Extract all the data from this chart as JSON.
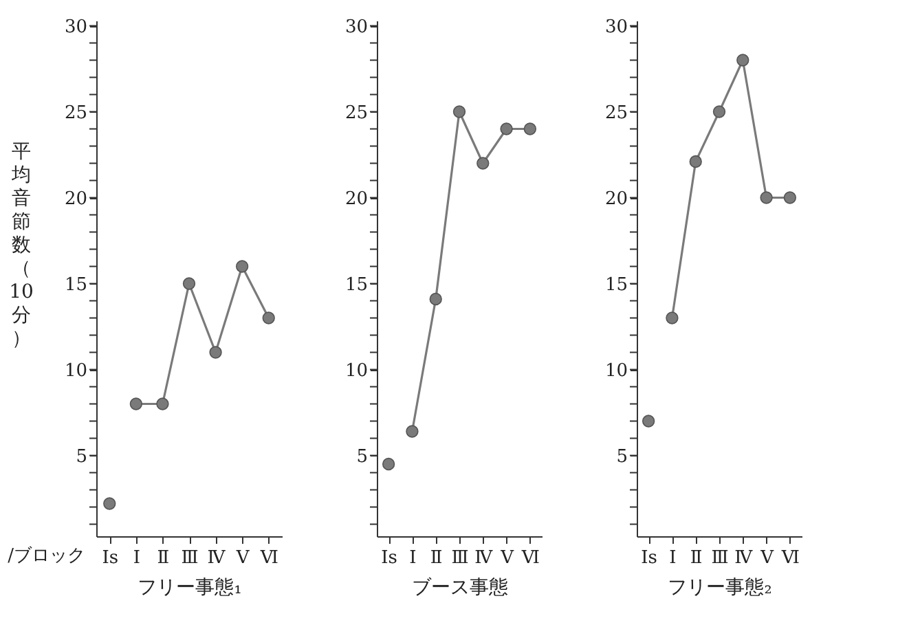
{
  "chart_data": [
    {
      "type": "line",
      "xlabel": "フリー事態₁",
      "ylabel": "平均音節数（10分）",
      "annotations": [
        "/ブロック"
      ],
      "categories": [
        "Ⅰs",
        "Ⅰ",
        "Ⅱ",
        "Ⅲ",
        "Ⅳ",
        "Ⅴ",
        "Ⅵ"
      ],
      "ylim": [
        0.3,
        30.3
      ],
      "yticks": [
        {
          "value": 1,
          "label": null
        },
        {
          "value": 2,
          "label": null
        },
        {
          "value": 3,
          "label": null
        },
        {
          "value": 4,
          "label": null
        },
        5,
        {
          "value": 6,
          "label": null
        },
        {
          "value": 7,
          "label": null
        },
        {
          "value": 8,
          "label": null
        },
        {
          "value": 9,
          "label": null
        },
        10,
        {
          "value": 11,
          "label": null
        },
        {
          "value": 12,
          "label": null
        },
        {
          "value": 13,
          "label": null
        },
        {
          "value": 14,
          "label": null
        },
        15,
        {
          "value": 16,
          "label": null
        },
        {
          "value": 17,
          "label": null
        },
        {
          "value": 18,
          "label": null
        },
        {
          "value": 19,
          "label": null
        },
        20,
        {
          "value": 21,
          "label": null
        },
        {
          "value": 22,
          "label": null
        },
        {
          "value": 23,
          "label": null
        },
        {
          "value": 24,
          "label": null
        },
        25,
        {
          "value": 26,
          "label": null
        },
        {
          "value": 27,
          "label": null
        },
        {
          "value": 28,
          "label": null
        },
        {
          "value": 29,
          "label": null
        },
        30
      ],
      "grid": false,
      "marker": "circle",
      "line_style": "solid",
      "series": [
        {
          "type": "scatter",
          "color": "#7a7a7a",
          "x": [
            "Ⅰs"
          ],
          "values": [
            2.2
          ]
        },
        {
          "type": "line",
          "color": "#7a7a7a",
          "values": [
            null,
            8,
            8,
            15,
            11,
            16,
            13
          ]
        }
      ]
    },
    {
      "type": "line",
      "xlabel": "ブース事態",
      "categories": [
        "Ⅰs",
        "Ⅰ",
        "Ⅱ",
        "Ⅲ",
        "Ⅳ",
        "Ⅴ",
        "Ⅵ"
      ],
      "ylim": [
        0.3,
        30.3
      ],
      "yticks": [
        {
          "value": 1,
          "label": null
        },
        {
          "value": 2,
          "label": null
        },
        {
          "value": 3,
          "label": null
        },
        {
          "value": 4,
          "label": null
        },
        5,
        {
          "value": 6,
          "label": null
        },
        {
          "value": 7,
          "label": null
        },
        {
          "value": 8,
          "label": null
        },
        {
          "value": 9,
          "label": null
        },
        10,
        {
          "value": 11,
          "label": null
        },
        {
          "value": 12,
          "label": null
        },
        {
          "value": 13,
          "label": null
        },
        {
          "value": 14,
          "label": null
        },
        15,
        {
          "value": 16,
          "label": null
        },
        {
          "value": 17,
          "label": null
        },
        {
          "value": 18,
          "label": null
        },
        {
          "value": 19,
          "label": null
        },
        20,
        {
          "value": 21,
          "label": null
        },
        {
          "value": 22,
          "label": null
        },
        {
          "value": 23,
          "label": null
        },
        {
          "value": 24,
          "label": null
        },
        25,
        {
          "value": 26,
          "label": null
        },
        {
          "value": 27,
          "label": null
        },
        {
          "value": 28,
          "label": null
        },
        {
          "value": 29,
          "label": null
        },
        30
      ],
      "grid": false,
      "marker": "circle",
      "line_style": "solid",
      "series": [
        {
          "type": "scatter",
          "color": "#7a7a7a",
          "x": [
            "Ⅰs"
          ],
          "values": [
            4.5
          ]
        },
        {
          "type": "line",
          "color": "#7a7a7a",
          "values": [
            null,
            6.4,
            14.1,
            25,
            22,
            24,
            24
          ]
        }
      ]
    },
    {
      "type": "line",
      "xlabel": "フリー事態₂",
      "categories": [
        "Ⅰs",
        "Ⅰ",
        "Ⅱ",
        "Ⅲ",
        "Ⅳ",
        "Ⅴ",
        "Ⅵ"
      ],
      "ylim": [
        0.3,
        30.3
      ],
      "yticks": [
        {
          "value": 1,
          "label": null
        },
        {
          "value": 2,
          "label": null
        },
        {
          "value": 3,
          "label": null
        },
        {
          "value": 4,
          "label": null
        },
        5,
        {
          "value": 6,
          "label": null
        },
        {
          "value": 7,
          "label": null
        },
        {
          "value": 8,
          "label": null
        },
        {
          "value": 9,
          "label": null
        },
        10,
        {
          "value": 11,
          "label": null
        },
        {
          "value": 12,
          "label": null
        },
        {
          "value": 13,
          "label": null
        },
        {
          "value": 14,
          "label": null
        },
        15,
        {
          "value": 16,
          "label": null
        },
        {
          "value": 17,
          "label": null
        },
        {
          "value": 18,
          "label": null
        },
        {
          "value": 19,
          "label": null
        },
        20,
        {
          "value": 21,
          "label": null
        },
        {
          "value": 22,
          "label": null
        },
        {
          "value": 23,
          "label": null
        },
        {
          "value": 24,
          "label": null
        },
        25,
        {
          "value": 26,
          "label": null
        },
        {
          "value": 27,
          "label": null
        },
        {
          "value": 28,
          "label": null
        },
        {
          "value": 29,
          "label": null
        },
        30
      ],
      "grid": false,
      "marker": "circle",
      "line_style": "solid",
      "series": [
        {
          "type": "scatter",
          "color": "#7a7a7a",
          "x": [
            "Ⅰs"
          ],
          "values": [
            7
          ]
        },
        {
          "type": "line",
          "color": "#7a7a7a",
          "values": [
            null,
            13,
            22.1,
            25,
            28,
            20,
            20
          ]
        }
      ]
    }
  ]
}
